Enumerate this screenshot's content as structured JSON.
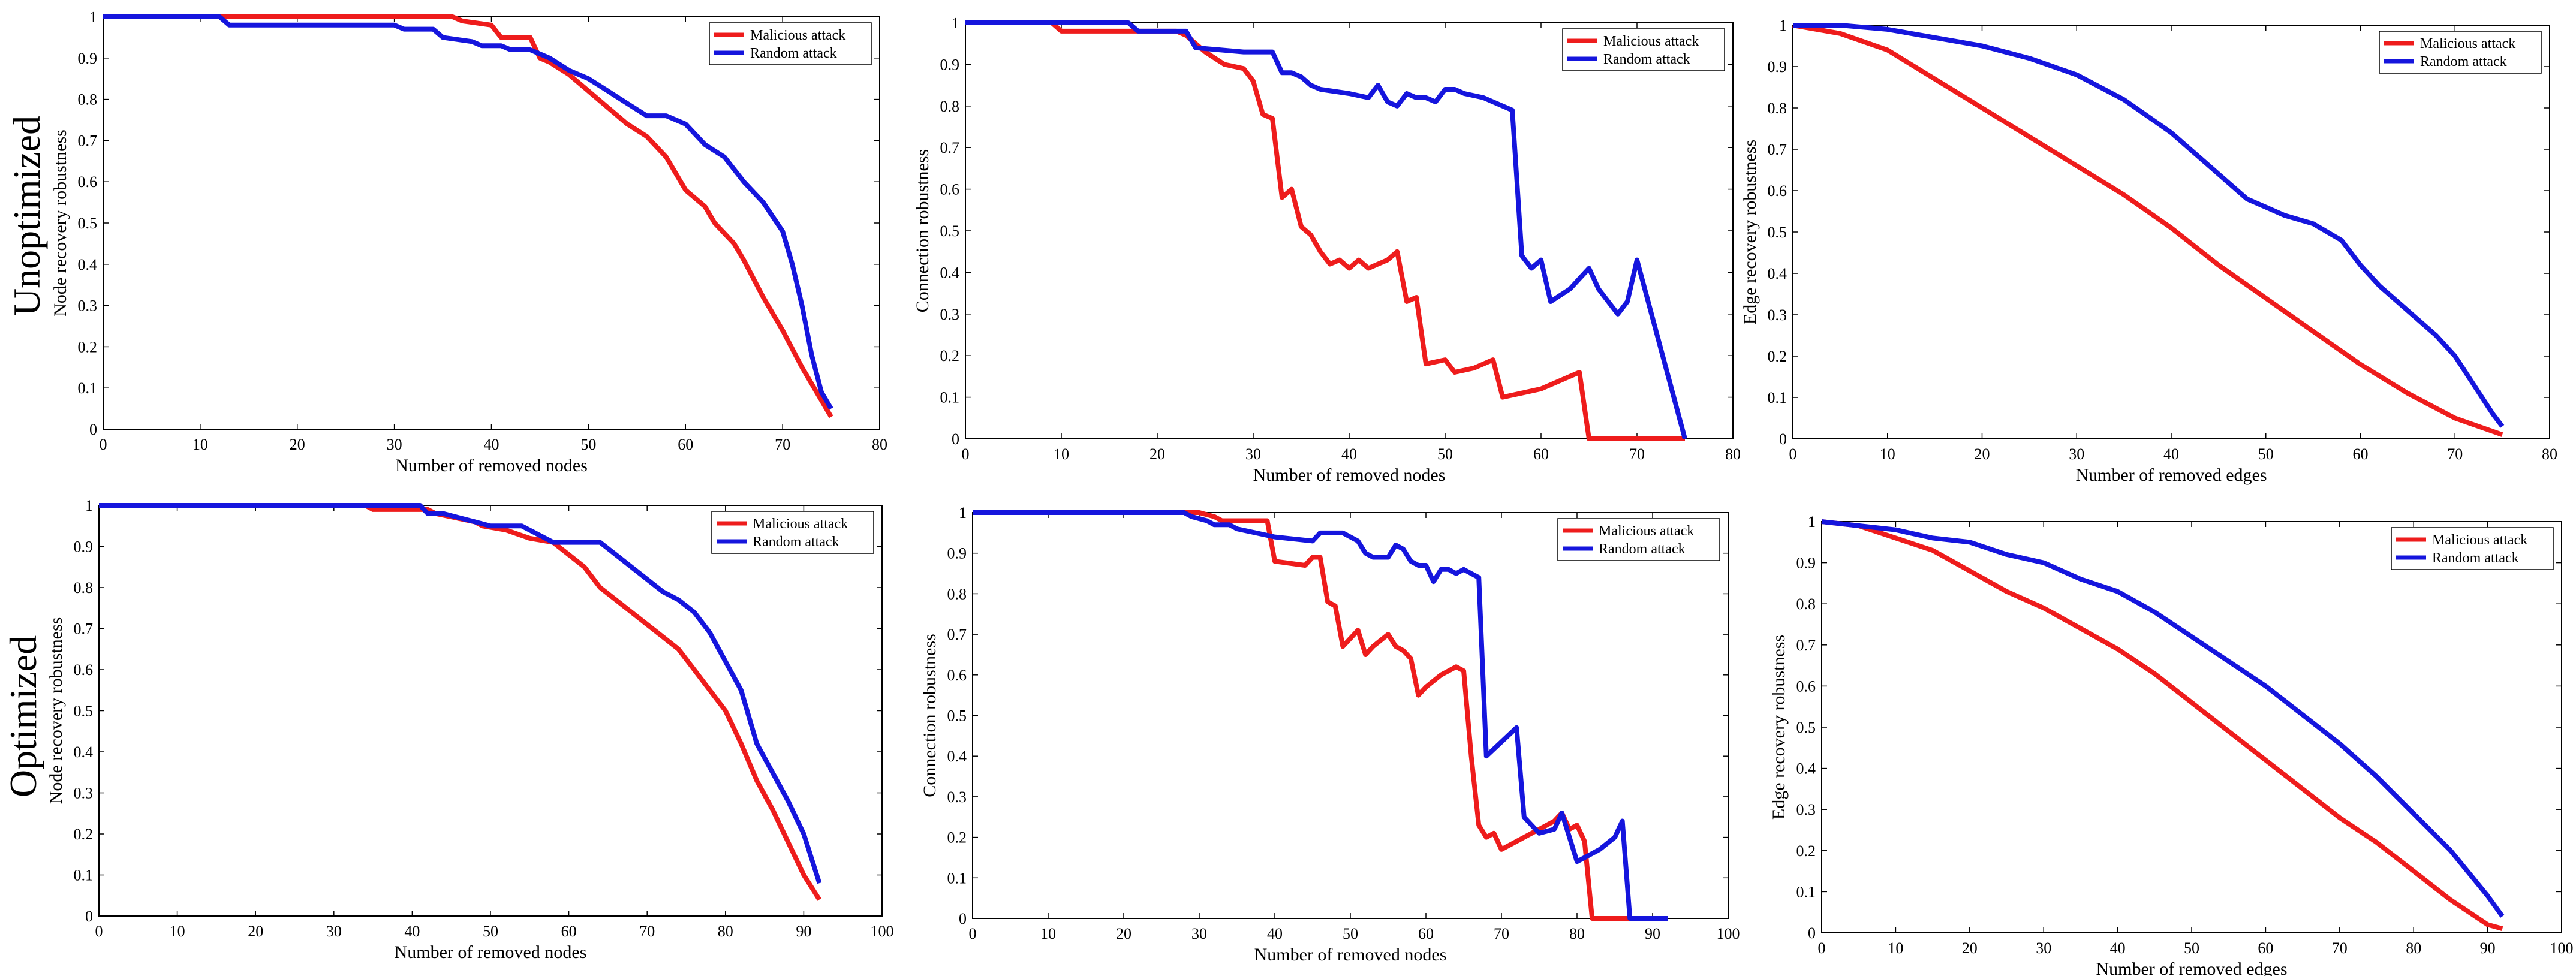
{
  "colors": {
    "malicious": "#ee1c1c",
    "random": "#1515dd",
    "axis": "#000000",
    "background": "#ffffff"
  },
  "rows": [
    "Unoptimized",
    "Optimized"
  ],
  "legend": [
    "Malicious attack",
    "Random attack"
  ],
  "chart_data": [
    {
      "type": "line",
      "row": "Unoptimized",
      "xlabel": "Number of removed nodes",
      "ylabel": "Node recovery robustness",
      "xlim": [
        0,
        80
      ],
      "ylim": [
        0,
        1
      ],
      "xticks": [
        "0",
        "10",
        "20",
        "30",
        "40",
        "50",
        "60",
        "70",
        "80"
      ],
      "yticks": [
        "0",
        "0.1",
        "0.2",
        "0.3",
        "0.4",
        "0.5",
        "0.6",
        "0.7",
        "0.8",
        "0.9",
        "1"
      ],
      "series": [
        {
          "name": "Malicious attack",
          "x": [
            0,
            36,
            37,
            40,
            41,
            44,
            45,
            46,
            48,
            50,
            52,
            54,
            56,
            58,
            60,
            62,
            63,
            65,
            66,
            68,
            70,
            72,
            74,
            75
          ],
          "y": [
            1,
            1,
            0.99,
            0.98,
            0.95,
            0.95,
            0.9,
            0.89,
            0.86,
            0.82,
            0.78,
            0.74,
            0.71,
            0.66,
            0.58,
            0.54,
            0.5,
            0.45,
            0.41,
            0.32,
            0.24,
            0.15,
            0.07,
            0.03
          ]
        },
        {
          "name": "Random attack",
          "x": [
            0,
            12,
            13,
            30,
            31,
            34,
            35,
            38,
            39,
            41,
            42,
            44,
            46,
            48,
            50,
            52,
            54,
            56,
            58,
            60,
            62,
            64,
            66,
            68,
            70,
            71,
            72,
            73,
            74,
            75
          ],
          "y": [
            1,
            1,
            0.98,
            0.98,
            0.97,
            0.97,
            0.95,
            0.94,
            0.93,
            0.93,
            0.92,
            0.92,
            0.9,
            0.87,
            0.85,
            0.82,
            0.79,
            0.76,
            0.76,
            0.74,
            0.69,
            0.66,
            0.6,
            0.55,
            0.48,
            0.4,
            0.3,
            0.18,
            0.09,
            0.05
          ]
        }
      ]
    },
    {
      "type": "line",
      "row": "Unoptimized",
      "xlabel": "Number of removed nodes",
      "ylabel": "Connection robustness",
      "xlim": [
        0,
        80
      ],
      "ylim": [
        0,
        1
      ],
      "xticks": [
        "0",
        "10",
        "20",
        "30",
        "40",
        "50",
        "60",
        "70",
        "80"
      ],
      "yticks": [
        "0",
        "0.1",
        "0.2",
        "0.3",
        "0.4",
        "0.5",
        "0.6",
        "0.7",
        "0.8",
        "0.9",
        "1"
      ],
      "series": [
        {
          "name": "Malicious attack",
          "x": [
            0,
            9,
            10,
            22,
            23,
            25,
            27,
            29,
            30,
            31,
            32,
            33,
            34,
            35,
            36,
            37,
            38,
            39,
            40,
            41,
            42,
            43,
            44,
            45,
            46,
            47,
            48,
            50,
            51,
            53,
            55,
            56,
            58,
            60,
            62,
            64,
            65,
            70,
            75
          ],
          "y": [
            1,
            1,
            0.98,
            0.98,
            0.97,
            0.93,
            0.9,
            0.89,
            0.86,
            0.78,
            0.77,
            0.58,
            0.6,
            0.51,
            0.49,
            0.45,
            0.42,
            0.43,
            0.41,
            0.43,
            0.41,
            0.42,
            0.43,
            0.45,
            0.33,
            0.34,
            0.18,
            0.19,
            0.16,
            0.17,
            0.19,
            0.1,
            0.11,
            0.12,
            0.14,
            0.16,
            0,
            0,
            0
          ]
        },
        {
          "name": "Random attack",
          "x": [
            0,
            17,
            18,
            23,
            24,
            29,
            30,
            31,
            32,
            33,
            34,
            35,
            36,
            37,
            40,
            42,
            43,
            44,
            45,
            46,
            47,
            48,
            49,
            50,
            51,
            52,
            54,
            56,
            57,
            58,
            59,
            60,
            61,
            63,
            65,
            66,
            68,
            69,
            70,
            75
          ],
          "y": [
            1,
            1,
            0.98,
            0.98,
            0.94,
            0.93,
            0.93,
            0.93,
            0.93,
            0.88,
            0.88,
            0.87,
            0.85,
            0.84,
            0.83,
            0.82,
            0.85,
            0.81,
            0.8,
            0.83,
            0.82,
            0.82,
            0.81,
            0.84,
            0.84,
            0.83,
            0.82,
            0.8,
            0.79,
            0.44,
            0.41,
            0.43,
            0.33,
            0.36,
            0.41,
            0.36,
            0.3,
            0.33,
            0.43,
            0
          ]
        }
      ]
    },
    {
      "type": "line",
      "row": "Unoptimized",
      "xlabel": "Number of removed edges",
      "ylabel": "Edge recovery robustness",
      "xlim": [
        0,
        80
      ],
      "ylim": [
        0,
        1
      ],
      "xticks": [
        "0",
        "10",
        "20",
        "30",
        "40",
        "50",
        "60",
        "70",
        "80"
      ],
      "yticks": [
        "0",
        "0.1",
        "0.2",
        "0.3",
        "0.4",
        "0.5",
        "0.6",
        "0.7",
        "0.8",
        "0.9",
        "1"
      ],
      "series": [
        {
          "name": "Malicious attack",
          "x": [
            0,
            5,
            10,
            15,
            20,
            25,
            30,
            35,
            40,
            45,
            50,
            55,
            60,
            65,
            70,
            75
          ],
          "y": [
            1,
            0.98,
            0.94,
            0.87,
            0.8,
            0.73,
            0.66,
            0.59,
            0.51,
            0.42,
            0.34,
            0.26,
            0.18,
            0.11,
            0.05,
            0.01
          ]
        },
        {
          "name": "Random attack",
          "x": [
            0,
            5,
            10,
            15,
            20,
            25,
            30,
            35,
            40,
            45,
            48,
            50,
            52,
            55,
            58,
            60,
            62,
            65,
            68,
            70,
            72,
            74,
            75
          ],
          "y": [
            1,
            1,
            0.99,
            0.97,
            0.95,
            0.92,
            0.88,
            0.82,
            0.74,
            0.64,
            0.58,
            0.56,
            0.54,
            0.52,
            0.48,
            0.42,
            0.37,
            0.31,
            0.25,
            0.2,
            0.13,
            0.06,
            0.03
          ]
        }
      ]
    },
    {
      "type": "line",
      "row": "Optimized",
      "xlabel": "Number of removed nodes",
      "ylabel": "Node recovery robustness",
      "xlim": [
        0,
        100
      ],
      "ylim": [
        0,
        1
      ],
      "xticks": [
        "0",
        "10",
        "20",
        "30",
        "40",
        "50",
        "60",
        "70",
        "80",
        "90",
        "100"
      ],
      "yticks": [
        "0",
        "0.1",
        "0.2",
        "0.3",
        "0.4",
        "0.5",
        "0.6",
        "0.7",
        "0.8",
        "0.9",
        "1"
      ],
      "series": [
        {
          "name": "Malicious attack",
          "x": [
            0,
            34,
            35,
            42,
            43,
            48,
            49,
            52,
            55,
            58,
            60,
            62,
            64,
            66,
            68,
            70,
            72,
            74,
            76,
            78,
            80,
            82,
            84,
            86,
            88,
            90,
            92
          ],
          "y": [
            1,
            1,
            0.99,
            0.99,
            0.98,
            0.96,
            0.95,
            0.94,
            0.92,
            0.91,
            0.88,
            0.85,
            0.8,
            0.77,
            0.74,
            0.71,
            0.68,
            0.65,
            0.6,
            0.55,
            0.5,
            0.42,
            0.33,
            0.26,
            0.18,
            0.1,
            0.04
          ]
        },
        {
          "name": "Random attack",
          "x": [
            0,
            41,
            42,
            44,
            46,
            48,
            50,
            52,
            54,
            56,
            58,
            60,
            62,
            64,
            66,
            68,
            70,
            72,
            74,
            76,
            78,
            80,
            82,
            84,
            86,
            88,
            90,
            92
          ],
          "y": [
            1,
            1,
            0.98,
            0.98,
            0.97,
            0.96,
            0.95,
            0.95,
            0.95,
            0.93,
            0.91,
            0.91,
            0.91,
            0.91,
            0.88,
            0.85,
            0.82,
            0.79,
            0.77,
            0.74,
            0.69,
            0.62,
            0.55,
            0.42,
            0.35,
            0.28,
            0.2,
            0.08
          ]
        }
      ]
    },
    {
      "type": "line",
      "row": "Optimized",
      "xlabel": "Number of removed nodes",
      "ylabel": "Connection robustness",
      "xlim": [
        0,
        100
      ],
      "ylim": [
        0,
        1
      ],
      "xticks": [
        "0",
        "10",
        "20",
        "30",
        "40",
        "50",
        "60",
        "70",
        "80",
        "90",
        "100"
      ],
      "yticks": [
        "0",
        "0.1",
        "0.2",
        "0.3",
        "0.4",
        "0.5",
        "0.6",
        "0.7",
        "0.8",
        "0.9",
        "1"
      ],
      "series": [
        {
          "name": "Malicious attack",
          "x": [
            0,
            30,
            32,
            33,
            34,
            39,
            40,
            44,
            45,
            46,
            47,
            48,
            49,
            50,
            51,
            52,
            53,
            55,
            56,
            57,
            58,
            59,
            60,
            62,
            64,
            65,
            66,
            67,
            68,
            69,
            70,
            73,
            75,
            77,
            78,
            79,
            80,
            81,
            82,
            87,
            92
          ],
          "y": [
            1,
            1,
            0.99,
            0.98,
            0.98,
            0.98,
            0.88,
            0.87,
            0.89,
            0.89,
            0.78,
            0.77,
            0.67,
            0.69,
            0.71,
            0.65,
            0.67,
            0.7,
            0.67,
            0.66,
            0.64,
            0.55,
            0.57,
            0.6,
            0.62,
            0.61,
            0.4,
            0.23,
            0.2,
            0.21,
            0.17,
            0.2,
            0.22,
            0.24,
            0.26,
            0.22,
            0.23,
            0.19,
            0,
            0,
            0
          ]
        },
        {
          "name": "Random attack",
          "x": [
            0,
            28,
            29,
            31,
            32,
            33,
            34,
            35,
            40,
            45,
            46,
            48,
            49,
            50,
            51,
            52,
            53,
            55,
            56,
            57,
            58,
            59,
            60,
            61,
            62,
            63,
            64,
            65,
            66,
            67,
            68,
            72,
            73,
            75,
            77,
            78,
            79,
            80,
            81,
            83,
            85,
            86,
            87,
            92
          ],
          "y": [
            1,
            1,
            0.99,
            0.98,
            0.97,
            0.97,
            0.97,
            0.96,
            0.94,
            0.93,
            0.95,
            0.95,
            0.95,
            0.94,
            0.93,
            0.9,
            0.89,
            0.89,
            0.92,
            0.91,
            0.88,
            0.87,
            0.87,
            0.83,
            0.86,
            0.86,
            0.85,
            0.86,
            0.85,
            0.84,
            0.4,
            0.47,
            0.25,
            0.21,
            0.22,
            0.26,
            0.2,
            0.14,
            0.15,
            0.17,
            0.2,
            0.24,
            0,
            0
          ]
        }
      ]
    },
    {
      "type": "line",
      "row": "Optimized",
      "xlabel": "Number of removed edges",
      "ylabel": "Edge recovery robustness",
      "xlim": [
        0,
        100
      ],
      "ylim": [
        0,
        1
      ],
      "xticks": [
        "0",
        "10",
        "20",
        "30",
        "40",
        "50",
        "60",
        "70",
        "80",
        "90",
        "100"
      ],
      "yticks": [
        "0",
        "0.1",
        "0.2",
        "0.3",
        "0.4",
        "0.5",
        "0.6",
        "0.7",
        "0.8",
        "0.9",
        "1"
      ],
      "series": [
        {
          "name": "Malicious attack",
          "x": [
            0,
            5,
            10,
            15,
            20,
            25,
            30,
            35,
            40,
            45,
            50,
            55,
            60,
            65,
            70,
            75,
            80,
            85,
            90,
            92
          ],
          "y": [
            1,
            0.99,
            0.96,
            0.93,
            0.88,
            0.83,
            0.79,
            0.74,
            0.69,
            0.63,
            0.56,
            0.49,
            0.42,
            0.35,
            0.28,
            0.22,
            0.15,
            0.08,
            0.02,
            0.01
          ]
        },
        {
          "name": "Random attack",
          "x": [
            0,
            5,
            10,
            15,
            20,
            25,
            30,
            35,
            40,
            45,
            50,
            55,
            60,
            65,
            70,
            75,
            80,
            85,
            90,
            92
          ],
          "y": [
            1,
            0.99,
            0.98,
            0.96,
            0.95,
            0.92,
            0.9,
            0.86,
            0.83,
            0.78,
            0.72,
            0.66,
            0.6,
            0.53,
            0.46,
            0.38,
            0.29,
            0.2,
            0.09,
            0.04
          ]
        }
      ]
    }
  ]
}
